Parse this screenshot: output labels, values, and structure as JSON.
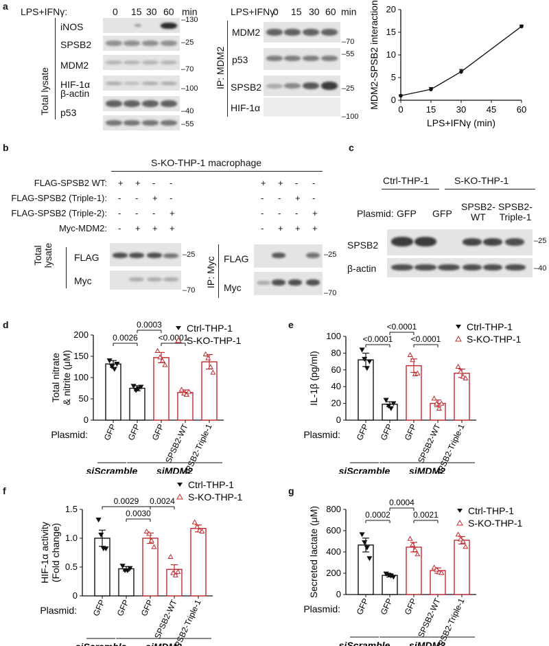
{
  "panel_letters": [
    "a",
    "b",
    "c",
    "d",
    "e",
    "f",
    "g"
  ],
  "panel_a": {
    "treatment_label": "LPS+IFNγ:",
    "timepoints": [
      "0",
      "15",
      "30",
      "60"
    ],
    "time_unit": "min",
    "left_group_label": "Total lysate",
    "left_rows": [
      "iNOS",
      "SPSB2",
      "MDM2",
      "HIF-1α",
      "β-actin",
      "p53"
    ],
    "left_markers": [
      "130",
      "25",
      "70",
      "100",
      "40",
      "55"
    ],
    "ip_label": "IP: MDM2",
    "ip_rows": [
      "MDM2",
      "p53",
      "SPSB2",
      "HIF-1α"
    ],
    "ip_markers": [
      "70",
      "55",
      "25",
      "100"
    ]
  },
  "panel_b": {
    "title": "S-KO-THP-1 macrophage",
    "rows": [
      {
        "label": "FLAG-SPSB2 WT:",
        "left": [
          "+",
          "+",
          "-",
          "-"
        ],
        "right": [
          "+",
          "+",
          "-",
          "-"
        ]
      },
      {
        "label": "FLAG-SPSB2 (Triple-1):",
        "left": [
          "-",
          "-",
          "+",
          "-"
        ],
        "right": [
          "-",
          "-",
          "+",
          "-"
        ]
      },
      {
        "label": "FLAG-SPSB2 (Triple-2):",
        "left": [
          "-",
          "-",
          "-",
          "+"
        ],
        "right": [
          "-",
          "-",
          "-",
          "+"
        ]
      },
      {
        "label": "Myc-MDM2:",
        "left": [
          "-",
          "+",
          "+",
          "+"
        ],
        "right": [
          "-",
          "+",
          "+",
          "+"
        ]
      }
    ],
    "total_label_1": "Total",
    "total_label_2": "lysate",
    "ip_label": "IP: Myc",
    "blot_rows": [
      "FLAG",
      "Myc"
    ],
    "markers": [
      "25",
      "70"
    ]
  },
  "panel_c": {
    "group_1": "Ctrl-THP-1",
    "group_2": "S-KO-THP-1",
    "plasmid_label": "Plasmid:",
    "plasmids": [
      "GFP",
      "GFP",
      "SPSB2-\nWT",
      "SPSB2-\nTriple-1"
    ],
    "blot_rows": [
      "SPSB2",
      "β-actin"
    ],
    "markers": [
      "25",
      "40"
    ]
  },
  "common": {
    "plasmid_label": "Plasmid:",
    "plasmids": [
      "GFP",
      "GFP",
      "GFP",
      "SPSB2-WT",
      "SPSB2-Triple-1"
    ],
    "si_scramble": "siScramble",
    "si_mdm2": "siMDM2",
    "legend": [
      "Ctrl-THP-1",
      "S-KO-THP-1"
    ],
    "colors": {
      "ctrl": "#111111",
      "sko": "#c0282d"
    }
  },
  "chart_data": [
    {
      "id": "a-line",
      "type": "line",
      "x": [
        0,
        15,
        30,
        60
      ],
      "y": [
        1.0,
        2.4,
        6.3,
        16.3
      ],
      "err": [
        0.2,
        0.4,
        0.5,
        0.3
      ],
      "xlabel": "LPS+IFNγ (min)",
      "ylabel": "MDM2-SPSB2 interaction",
      "xticks": [
        0,
        15,
        30,
        45,
        60
      ],
      "yticks": [
        0,
        5,
        10,
        15,
        20
      ],
      "xlim": [
        0,
        60
      ],
      "ylim": [
        0,
        20
      ]
    },
    {
      "id": "d",
      "type": "bar",
      "ylabel_lines": [
        "Total nitrate",
        "& nitrite (μM)"
      ],
      "ylim": [
        0,
        200
      ],
      "yticks": [
        0,
        50,
        100,
        150,
        200
      ],
      "values": [
        132,
        75,
        147,
        65,
        137
      ],
      "err": [
        8,
        6,
        12,
        6,
        17
      ],
      "series_of_bar": [
        "ctrl",
        "ctrl",
        "sko",
        "sko",
        "sko"
      ],
      "points": [
        [
          140,
          126,
          120,
          132
        ],
        [
          80,
          70,
          74,
          78
        ],
        [
          163,
          148,
          140,
          130
        ],
        [
          72,
          63,
          60,
          67
        ],
        [
          155,
          146,
          125,
          112
        ]
      ],
      "brackets": [
        {
          "from": 0,
          "to": 1,
          "label": "0.0026",
          "level": 0
        },
        {
          "from": 1,
          "to": 2,
          "label": "0.0003",
          "level": 1
        },
        {
          "from": 2,
          "to": 3,
          "label": "<0.0001",
          "level": 0
        }
      ]
    },
    {
      "id": "e",
      "type": "bar",
      "ylabel_lines": [
        "IL-1β (pg/ml)"
      ],
      "ylim": [
        0,
        100
      ],
      "yticks": [
        0,
        20,
        40,
        60,
        80,
        100
      ],
      "values": [
        72,
        19,
        65,
        20,
        56
      ],
      "err": [
        8,
        3,
        8,
        4,
        5
      ],
      "series_of_bar": [
        "ctrl",
        "ctrl",
        "sko",
        "sko",
        "sko"
      ],
      "points": [
        [
          84,
          73,
          62,
          70
        ],
        [
          24,
          17,
          14,
          20
        ],
        [
          78,
          72,
          55,
          56
        ],
        [
          26,
          20,
          14,
          20
        ],
        [
          64,
          58,
          52,
          50
        ]
      ],
      "brackets": [
        {
          "from": 0,
          "to": 1,
          "label": "<0.0001",
          "level": 0
        },
        {
          "from": 1,
          "to": 2,
          "label": "<0.0001",
          "level": 1
        },
        {
          "from": 2,
          "to": 3,
          "label": "<0.0001",
          "level": 0
        }
      ]
    },
    {
      "id": "f",
      "type": "bar",
      "ylabel_lines": [
        "HIF-1α activity",
        "(Fold change)"
      ],
      "ylim": [
        0,
        1.5
      ],
      "yticks": [
        "0",
        "0.5",
        "1.0",
        "1.5"
      ],
      "values": [
        1.0,
        0.47,
        1.0,
        0.46,
        1.17
      ],
      "err": [
        0.14,
        0.04,
        0.09,
        0.08,
        0.06
      ],
      "series_of_bar": [
        "ctrl",
        "ctrl",
        "sko",
        "sko",
        "sko"
      ],
      "points": [
        [
          1.32,
          1.06,
          0.82,
          0.82
        ],
        [
          0.52,
          0.44,
          0.44,
          0.48
        ],
        [
          1.12,
          1.08,
          0.96,
          0.85
        ],
        [
          0.68,
          0.4,
          0.36,
          0.42
        ],
        [
          1.28,
          1.2,
          1.14,
          1.12
        ]
      ],
      "brackets": [
        {
          "from": 0,
          "to": 2,
          "label": "0.0029",
          "level": 1
        },
        {
          "from": 1,
          "to": 2,
          "label": "0.0030",
          "level": 0
        },
        {
          "from": 2,
          "to": 3,
          "label": "0.0024",
          "level": 1
        }
      ]
    },
    {
      "id": "g",
      "type": "bar",
      "ylabel_lines": [
        "Secreted lactate (μM)"
      ],
      "ylim": [
        0,
        800
      ],
      "yticks": [
        0,
        200,
        400,
        600,
        800
      ],
      "values": [
        465,
        180,
        445,
        225,
        510
      ],
      "err": [
        65,
        15,
        45,
        25,
        35
      ],
      "series_of_bar": [
        "ctrl",
        "ctrl",
        "sko",
        "sko",
        "sko"
      ],
      "points": [
        [
          565,
          490,
          440,
          340
        ],
        [
          195,
          185,
          175,
          165
        ],
        [
          525,
          470,
          420,
          380
        ],
        [
          255,
          235,
          210,
          205
        ],
        [
          565,
          520,
          500,
          450
        ]
      ],
      "brackets": [
        {
          "from": 0,
          "to": 1,
          "label": "0.0002",
          "level": 0
        },
        {
          "from": 1,
          "to": 2,
          "label": "0.0004",
          "level": 1
        },
        {
          "from": 2,
          "to": 3,
          "label": "0.0021",
          "level": 0
        }
      ]
    }
  ]
}
